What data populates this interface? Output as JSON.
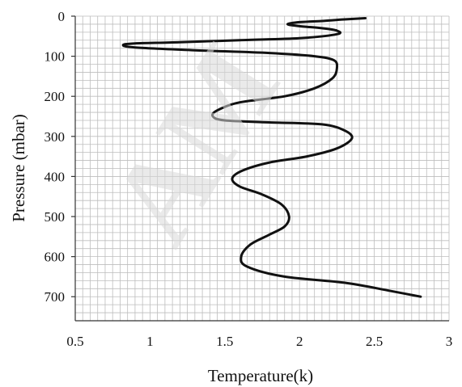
{
  "watermark": {
    "text": "AM"
  },
  "chart_data": {
    "type": "line",
    "title": "",
    "xlabel": "Temperature(k)",
    "ylabel": "Pressure (mbar)",
    "xlim": [
      0.5,
      3
    ],
    "ylim": [
      0,
      760
    ],
    "y_inverted": true,
    "x_ticks": [
      0.5,
      1,
      1.5,
      2,
      2.5,
      3
    ],
    "x_tick_labels": [
      "0.5",
      "1",
      "1.5",
      "2",
      "2.5",
      "3"
    ],
    "y_ticks": [
      0,
      100,
      200,
      300,
      400,
      500,
      600,
      700
    ],
    "y_tick_labels": [
      "0",
      "100",
      "200",
      "300",
      "400",
      "500",
      "600",
      "700"
    ],
    "grid": true,
    "legend": "none",
    "colors": {
      "line": "#111111",
      "line_highlight": "#7a7a7a",
      "grid": "#bdbdbd",
      "axis": "#333333"
    },
    "series": [
      {
        "x": [
          2.44,
          2.3,
          2.15,
          2.0,
          1.92,
          2.0,
          2.15,
          2.25,
          2.25,
          2.0,
          1.6,
          1.2,
          0.9,
          0.82,
          0.9,
          1.3,
          1.8,
          2.1,
          2.23,
          2.25,
          2.22,
          2.1,
          1.9,
          1.6,
          1.45,
          1.42,
          1.5,
          1.8,
          2.15,
          2.3,
          2.35,
          2.25,
          2.05,
          1.8,
          1.62,
          1.55,
          1.6,
          1.75,
          1.88,
          1.93,
          1.9,
          1.8,
          1.67,
          1.61,
          1.65,
          1.9,
          2.3,
          2.6,
          2.81
        ],
        "y": [
          5,
          8,
          12,
          15,
          20,
          25,
          30,
          36,
          45,
          55,
          60,
          65,
          68,
          72,
          78,
          85,
          92,
          100,
          110,
          130,
          155,
          180,
          200,
          215,
          235,
          250,
          260,
          265,
          270,
          285,
          305,
          330,
          350,
          365,
          385,
          405,
          425,
          445,
          470,
          500,
          525,
          545,
          570,
          600,
          625,
          650,
          665,
          685,
          700
        ]
      }
    ]
  }
}
